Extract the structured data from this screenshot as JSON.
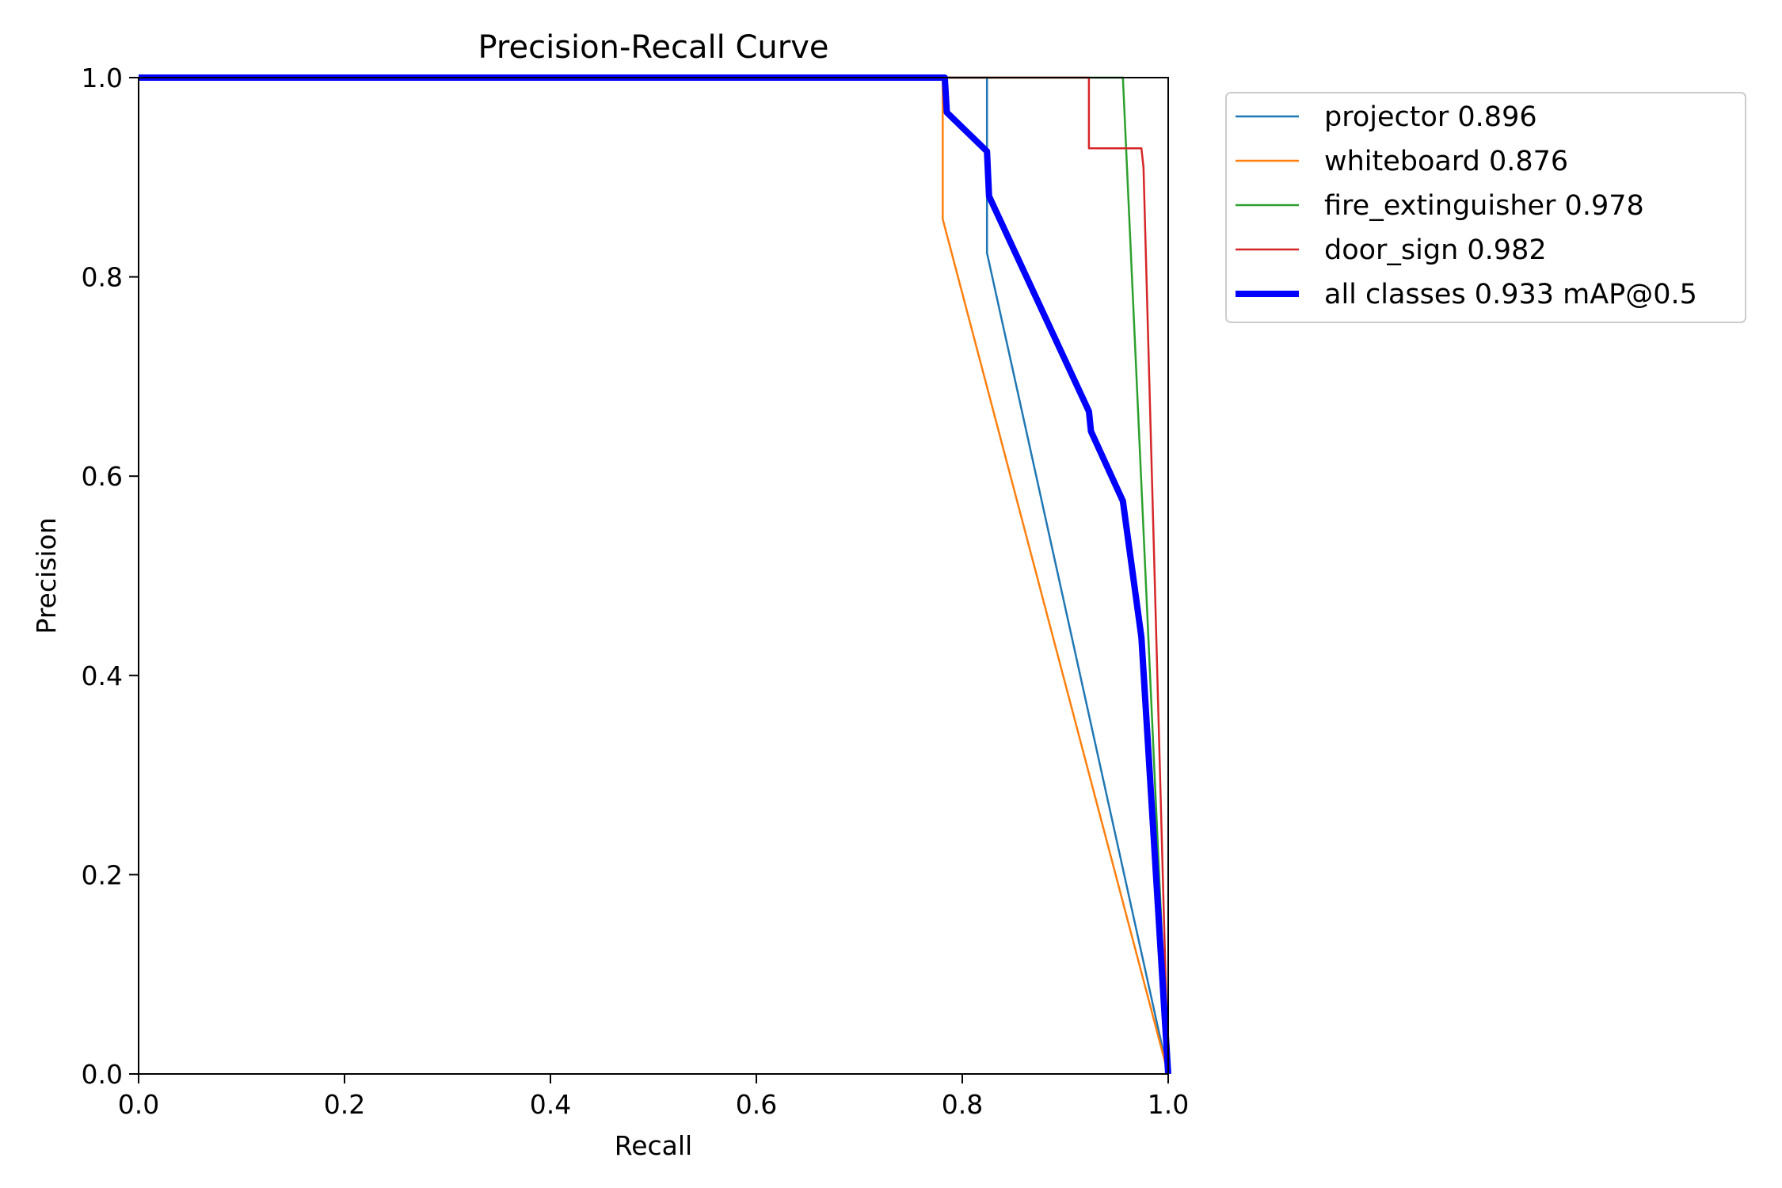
{
  "chart_data": {
    "type": "line",
    "title": "Precision-Recall Curve",
    "xlabel": "Recall",
    "ylabel": "Precision",
    "xlim": [
      0.0,
      1.0
    ],
    "ylim": [
      0.0,
      1.0
    ],
    "xticks": [
      "0.0",
      "0.2",
      "0.4",
      "0.6",
      "0.8",
      "1.0"
    ],
    "yticks": [
      "0.0",
      "0.2",
      "0.4",
      "0.6",
      "0.8",
      "1.0"
    ],
    "grid": false,
    "legend_position": "outside-top-right",
    "series": [
      {
        "name": "projector 0.896",
        "color": "#1f77b4",
        "points": [
          [
            0.0,
            1.0
          ],
          [
            0.824,
            1.0
          ],
          [
            0.824,
            0.824
          ],
          [
            1.0,
            0.0
          ]
        ]
      },
      {
        "name": "whiteboard 0.876",
        "color": "#ff7f0e",
        "points": [
          [
            0.0,
            1.0
          ],
          [
            0.781,
            1.0
          ],
          [
            0.781,
            0.858
          ],
          [
            1.0,
            0.0
          ]
        ]
      },
      {
        "name": "fire_extinguisher 0.978",
        "color": "#2ca02c",
        "points": [
          [
            0.0,
            1.0
          ],
          [
            0.956,
            1.0
          ],
          [
            1.0,
            0.0
          ]
        ]
      },
      {
        "name": "door_sign 0.982",
        "color": "#d62728",
        "points": [
          [
            0.0,
            1.0
          ],
          [
            0.923,
            1.0
          ],
          [
            0.923,
            0.929
          ],
          [
            0.974,
            0.929
          ],
          [
            0.976,
            0.91
          ],
          [
            1.0,
            0.0
          ]
        ]
      },
      {
        "name": "all classes 0.933 mAP@0.5",
        "color": "#0000ff",
        "bold": true,
        "points": [
          [
            0.0,
            1.0
          ],
          [
            0.783,
            1.0
          ],
          [
            0.785,
            0.965
          ],
          [
            0.824,
            0.926
          ],
          [
            0.826,
            0.881
          ],
          [
            0.923,
            0.665
          ],
          [
            0.925,
            0.645
          ],
          [
            0.956,
            0.575
          ],
          [
            0.974,
            0.438
          ],
          [
            1.0,
            0.0
          ]
        ]
      }
    ]
  }
}
